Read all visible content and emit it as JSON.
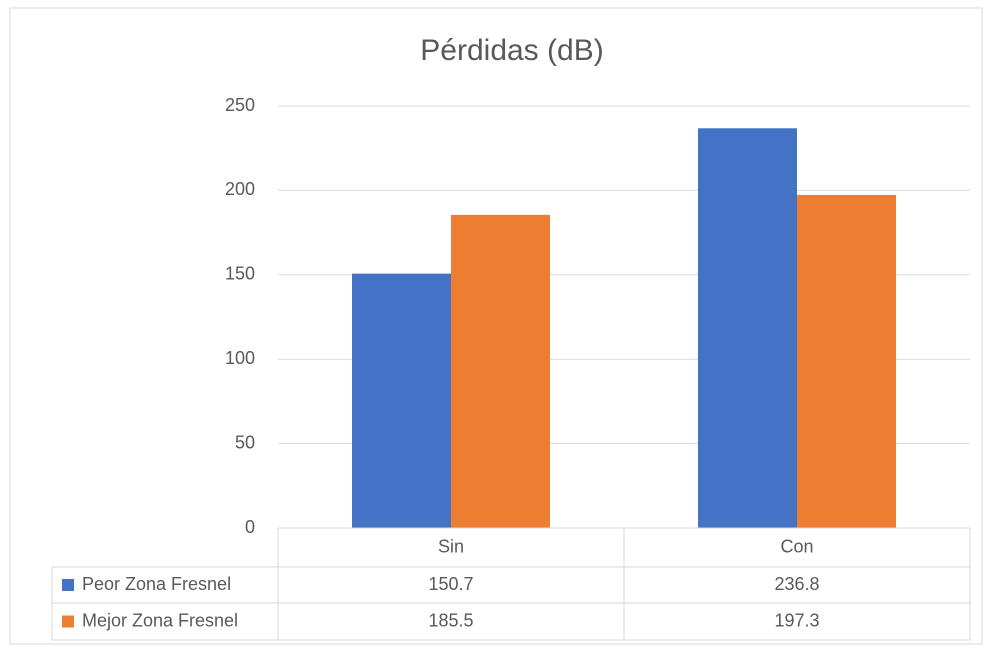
{
  "chart_data": {
    "type": "bar",
    "title": "Pérdidas (dB)",
    "categories": [
      "Sin",
      "Con"
    ],
    "series": [
      {
        "name": "Peor Zona Fresnel",
        "color": "#4472c4",
        "values": [
          150.7,
          236.8
        ]
      },
      {
        "name": "Mejor Zona Fresnel",
        "color": "#ed7d31",
        "values": [
          185.5,
          197.3
        ]
      }
    ],
    "ylim": [
      0,
      250
    ],
    "yticks": [
      0,
      50,
      100,
      150,
      200,
      250
    ],
    "grid": true,
    "data_table": true
  }
}
